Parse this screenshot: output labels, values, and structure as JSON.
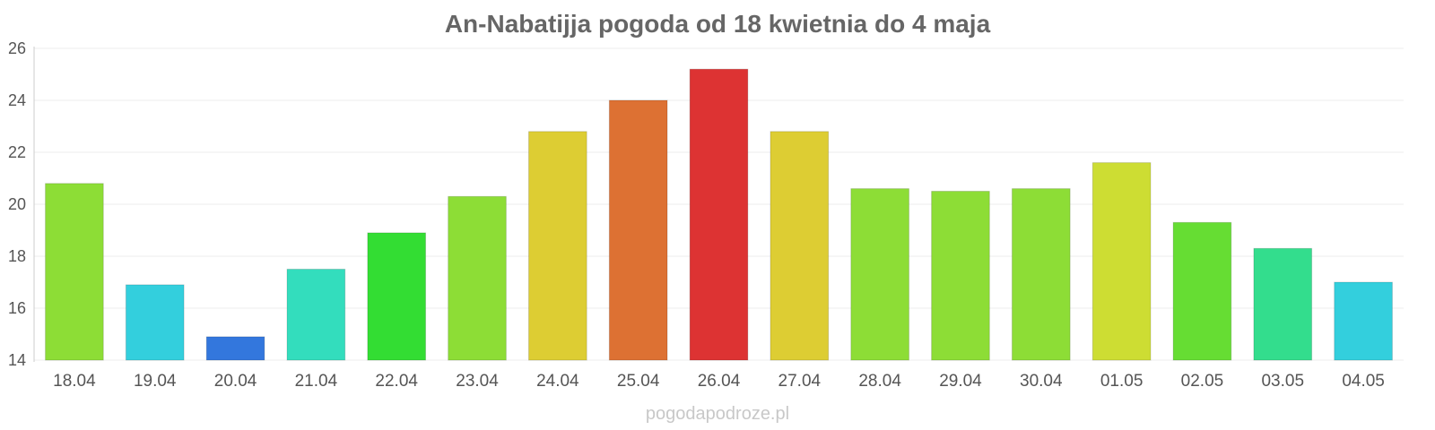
{
  "chart_data": {
    "type": "bar",
    "title": "An-Nabatijja pogoda od 18 kwietnia do 4 maja",
    "categories": [
      "18.04",
      "19.04",
      "20.04",
      "21.04",
      "22.04",
      "23.04",
      "24.04",
      "25.04",
      "26.04",
      "27.04",
      "28.04",
      "29.04",
      "30.04",
      "01.05",
      "02.05",
      "03.05",
      "04.05"
    ],
    "values": [
      20.8,
      16.9,
      14.9,
      17.5,
      18.9,
      20.3,
      22.8,
      24.0,
      25.2,
      22.8,
      20.6,
      20.5,
      20.6,
      21.6,
      19.3,
      18.3,
      17.0
    ],
    "colors": [
      "#8ddd36",
      "#33cfdd",
      "#3377dd",
      "#33ddbd",
      "#33dd33",
      "#8ddd36",
      "#ddcd33",
      "#dd7133",
      "#dd3333",
      "#ddcd33",
      "#8ddd36",
      "#8ddd36",
      "#8ddd36",
      "#cddd33",
      "#66dd33",
      "#33dd8d",
      "#33cfdd"
    ],
    "yticks": [
      "14",
      "16",
      "18",
      "20",
      "22",
      "24",
      "26"
    ],
    "ylim": [
      14,
      26
    ],
    "grid": true,
    "legend": "none",
    "watermark": "pogodapodroze.pl"
  }
}
